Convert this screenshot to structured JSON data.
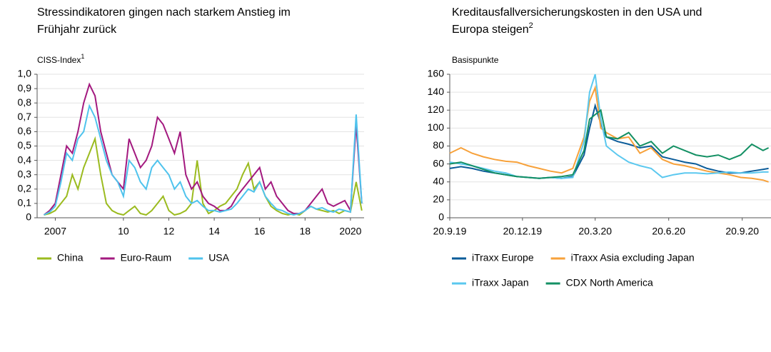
{
  "chart_data": [
    {
      "type": "line",
      "title": "Stressindikatoren gingen nach starkem Anstieg im Frühjahr zurück",
      "unit_label": "CISS-Index",
      "unit_note": "1",
      "x": [
        2006.5,
        2006.75,
        2007,
        2007.25,
        2007.5,
        2007.75,
        2008,
        2008.25,
        2008.5,
        2008.75,
        2009,
        2009.25,
        2009.5,
        2009.75,
        2010,
        2010.25,
        2010.5,
        2010.75,
        2011,
        2011.25,
        2011.5,
        2011.75,
        2012,
        2012.25,
        2012.5,
        2012.75,
        2013,
        2013.25,
        2013.5,
        2013.75,
        2014,
        2014.25,
        2014.5,
        2014.75,
        2015,
        2015.25,
        2015.5,
        2015.75,
        2016,
        2016.25,
        2016.5,
        2016.75,
        2017,
        2017.25,
        2017.5,
        2017.75,
        2018,
        2018.25,
        2018.5,
        2018.75,
        2019,
        2019.25,
        2019.5,
        2019.75,
        2020,
        2020.25,
        2020.5
      ],
      "series": [
        {
          "name": "China",
          "color": "#9bbb1f",
          "values": [
            0.02,
            0.03,
            0.05,
            0.1,
            0.15,
            0.3,
            0.2,
            0.35,
            0.45,
            0.55,
            0.3,
            0.1,
            0.05,
            0.03,
            0.02,
            0.05,
            0.08,
            0.03,
            0.02,
            0.05,
            0.1,
            0.15,
            0.05,
            0.02,
            0.03,
            0.05,
            0.1,
            0.4,
            0.1,
            0.03,
            0.05,
            0.08,
            0.1,
            0.15,
            0.2,
            0.3,
            0.38,
            0.2,
            0.25,
            0.15,
            0.08,
            0.05,
            0.03,
            0.02,
            0.03,
            0.02,
            0.05,
            0.08,
            0.06,
            0.05,
            0.04,
            0.05,
            0.03,
            0.05,
            0.04,
            0.25,
            0.05
          ]
        },
        {
          "name": "Euro-Raum",
          "color": "#a3197f",
          "values": [
            0.02,
            0.05,
            0.1,
            0.3,
            0.5,
            0.45,
            0.6,
            0.8,
            0.93,
            0.85,
            0.6,
            0.45,
            0.3,
            0.25,
            0.2,
            0.55,
            0.45,
            0.35,
            0.4,
            0.5,
            0.7,
            0.65,
            0.55,
            0.45,
            0.6,
            0.3,
            0.2,
            0.25,
            0.15,
            0.1,
            0.08,
            0.05,
            0.05,
            0.08,
            0.15,
            0.2,
            0.25,
            0.3,
            0.35,
            0.2,
            0.25,
            0.15,
            0.1,
            0.05,
            0.03,
            0.03,
            0.05,
            0.1,
            0.15,
            0.2,
            0.1,
            0.08,
            0.1,
            0.12,
            0.05,
            0.65,
            0.1
          ]
        },
        {
          "name": "USA",
          "color": "#4fc3ed",
          "values": [
            0.02,
            0.04,
            0.08,
            0.25,
            0.45,
            0.4,
            0.55,
            0.6,
            0.78,
            0.7,
            0.55,
            0.4,
            0.3,
            0.25,
            0.15,
            0.4,
            0.35,
            0.25,
            0.2,
            0.35,
            0.4,
            0.35,
            0.3,
            0.2,
            0.25,
            0.15,
            0.1,
            0.12,
            0.08,
            0.05,
            0.05,
            0.04,
            0.05,
            0.06,
            0.1,
            0.15,
            0.2,
            0.18,
            0.25,
            0.15,
            0.1,
            0.06,
            0.05,
            0.03,
            0.02,
            0.03,
            0.05,
            0.08,
            0.06,
            0.07,
            0.05,
            0.04,
            0.06,
            0.05,
            0.04,
            0.72,
            0.1
          ]
        }
      ],
      "xlim": [
        2006.2,
        2020.6
      ],
      "xticks": [
        2007,
        {
          "value": 2010,
          "label": "10"
        },
        {
          "value": 2012,
          "label": "12"
        },
        {
          "value": 2014,
          "label": "14"
        },
        {
          "value": 2016,
          "label": "16"
        },
        {
          "value": 2018,
          "label": "18"
        },
        2020
      ],
      "ylim": [
        0,
        1
      ],
      "yticks": [
        0,
        {
          "value": 0.1,
          "label": "0,1"
        },
        {
          "value": 0.2,
          "label": "0,2"
        },
        {
          "value": 0.3,
          "label": "0,3"
        },
        {
          "value": 0.4,
          "label": "0,4"
        },
        {
          "value": 0.5,
          "label": "0,5"
        },
        {
          "value": 0.6,
          "label": "0,6"
        },
        {
          "value": 0.7,
          "label": "0,7"
        },
        {
          "value": 0.8,
          "label": "0,8"
        },
        {
          "value": 0.9,
          "label": "0,9"
        },
        {
          "value": 1,
          "label": "1,0"
        }
      ],
      "grid": true
    },
    {
      "type": "line",
      "title": "Kreditausfallversicherungskosten in den USA und Europa steigen",
      "title_note": "2",
      "unit_label": "Basispunkte",
      "x": [
        "2019-09-20",
        "2019-10-04",
        "2019-10-18",
        "2019-11-01",
        "2019-11-15",
        "2019-11-29",
        "2019-12-13",
        "2019-12-27",
        "2020-01-10",
        "2020-01-24",
        "2020-02-07",
        "2020-02-21",
        "2020-03-06",
        "2020-03-13",
        "2020-03-20",
        "2020-03-27",
        "2020-04-03",
        "2020-04-17",
        "2020-05-01",
        "2020-05-15",
        "2020-05-29",
        "2020-06-12",
        "2020-06-26",
        "2020-07-10",
        "2020-07-24",
        "2020-08-07",
        "2020-08-21",
        "2020-09-04",
        "2020-09-18",
        "2020-10-02",
        "2020-10-16",
        "2020-10-23"
      ],
      "series": [
        {
          "name": "iTraxx Europe",
          "color": "#0b5c99",
          "values": [
            55,
            57,
            55,
            52,
            50,
            48,
            46,
            45,
            44,
            45,
            44,
            46,
            70,
            100,
            125,
            105,
            90,
            85,
            82,
            78,
            80,
            68,
            65,
            62,
            60,
            55,
            52,
            50,
            50,
            52,
            54,
            55
          ]
        },
        {
          "name": "iTraxx Asia excluding Japan",
          "color": "#f7a13a",
          "values": [
            72,
            78,
            72,
            68,
            65,
            63,
            62,
            58,
            55,
            52,
            50,
            55,
            90,
            130,
            145,
            100,
            95,
            88,
            90,
            72,
            78,
            65,
            60,
            58,
            55,
            52,
            50,
            48,
            45,
            44,
            42,
            40
          ]
        },
        {
          "name": "iTraxx Japan",
          "color": "#5bc8ef",
          "values": [
            62,
            60,
            58,
            55,
            52,
            50,
            46,
            45,
            44,
            45,
            44,
            45,
            85,
            140,
            160,
            110,
            80,
            70,
            62,
            58,
            55,
            45,
            48,
            50,
            50,
            49,
            50,
            51,
            50,
            50,
            51,
            51
          ]
        },
        {
          "name": "CDX North America",
          "color": "#149064",
          "values": [
            60,
            62,
            58,
            54,
            50,
            48,
            46,
            45,
            44,
            45,
            46,
            48,
            75,
            110,
            115,
            120,
            90,
            88,
            95,
            80,
            85,
            72,
            80,
            75,
            70,
            68,
            70,
            65,
            70,
            82,
            75,
            78
          ]
        }
      ],
      "xlim": [
        "2019-09-20",
        "2020-10-26"
      ],
      "xticks": [
        {
          "value": "2019-09-20",
          "label": "20.9.19"
        },
        {
          "value": "2019-12-20",
          "label": "20.12.19"
        },
        {
          "value": "2020-03-20",
          "label": "20.3.20"
        },
        {
          "value": "2020-06-20",
          "label": "20.6.20"
        },
        {
          "value": "2020-09-20",
          "label": "20.9.20"
        }
      ],
      "ylim": [
        0,
        160
      ],
      "yticks": [
        0,
        20,
        40,
        60,
        80,
        100,
        120,
        140,
        160
      ],
      "grid": true
    }
  ]
}
